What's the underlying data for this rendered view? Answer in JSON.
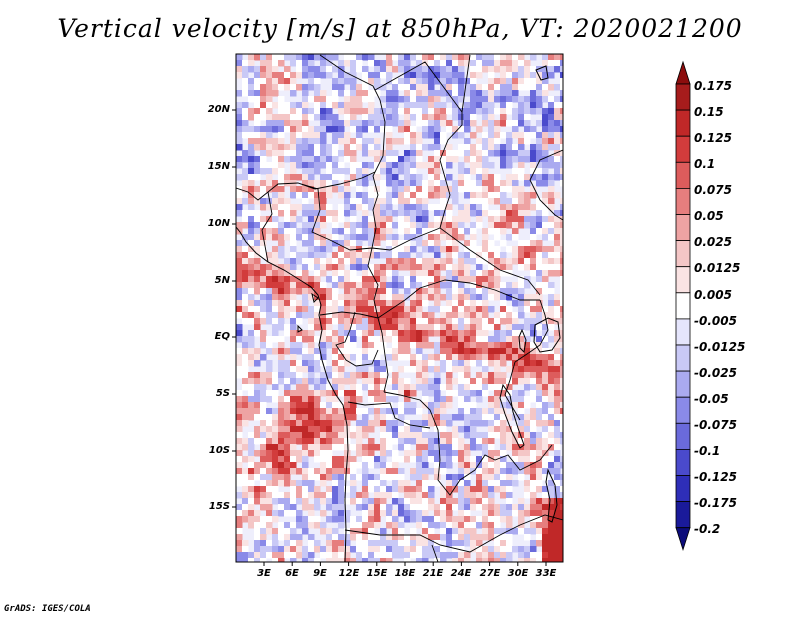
{
  "title": "Vertical velocity [m/s] at 850hPa, VT: 2020021200",
  "credit": "GrADS: IGES/COLA",
  "map": {
    "region": "Central Africa",
    "latitude_labels": [
      "20N",
      "15N",
      "10N",
      "5N",
      "EQ",
      "5S",
      "10S",
      "15S"
    ],
    "longitude_labels": [
      "3E",
      "6E",
      "9E",
      "12E",
      "15E",
      "18E",
      "21E",
      "24E",
      "27E",
      "30E",
      "33E"
    ],
    "features": {
      "boundaries": "country-borders",
      "coastline": "atlantic-coast",
      "lakes": [
        "Lake Victoria",
        "Lake Tanganyika",
        "Lake Malawi"
      ]
    }
  },
  "colorbar": {
    "labels": [
      "0.175",
      "0.15",
      "0.125",
      "0.1",
      "0.075",
      "0.05",
      "0.025",
      "0.0125",
      "0.005",
      "-0.005",
      "-0.0125",
      "-0.025",
      "-0.05",
      "-0.075",
      "-0.1",
      "-0.125",
      "-0.175",
      "-0.2"
    ],
    "colors": [
      "#8c0d0d",
      "#a61c1c",
      "#c02828",
      "#d23c3c",
      "#dd5c5c",
      "#e67e7e",
      "#eea3a3",
      "#f4c6c6",
      "#fae3e3",
      "#ffffff",
      "#e5e5fc",
      "#c9c9f6",
      "#aaaaf0",
      "#8a8ae8",
      "#6a6adb",
      "#4a4acc",
      "#2e2eb8",
      "#1a1a9a",
      "#0c0c7a"
    ]
  }
}
